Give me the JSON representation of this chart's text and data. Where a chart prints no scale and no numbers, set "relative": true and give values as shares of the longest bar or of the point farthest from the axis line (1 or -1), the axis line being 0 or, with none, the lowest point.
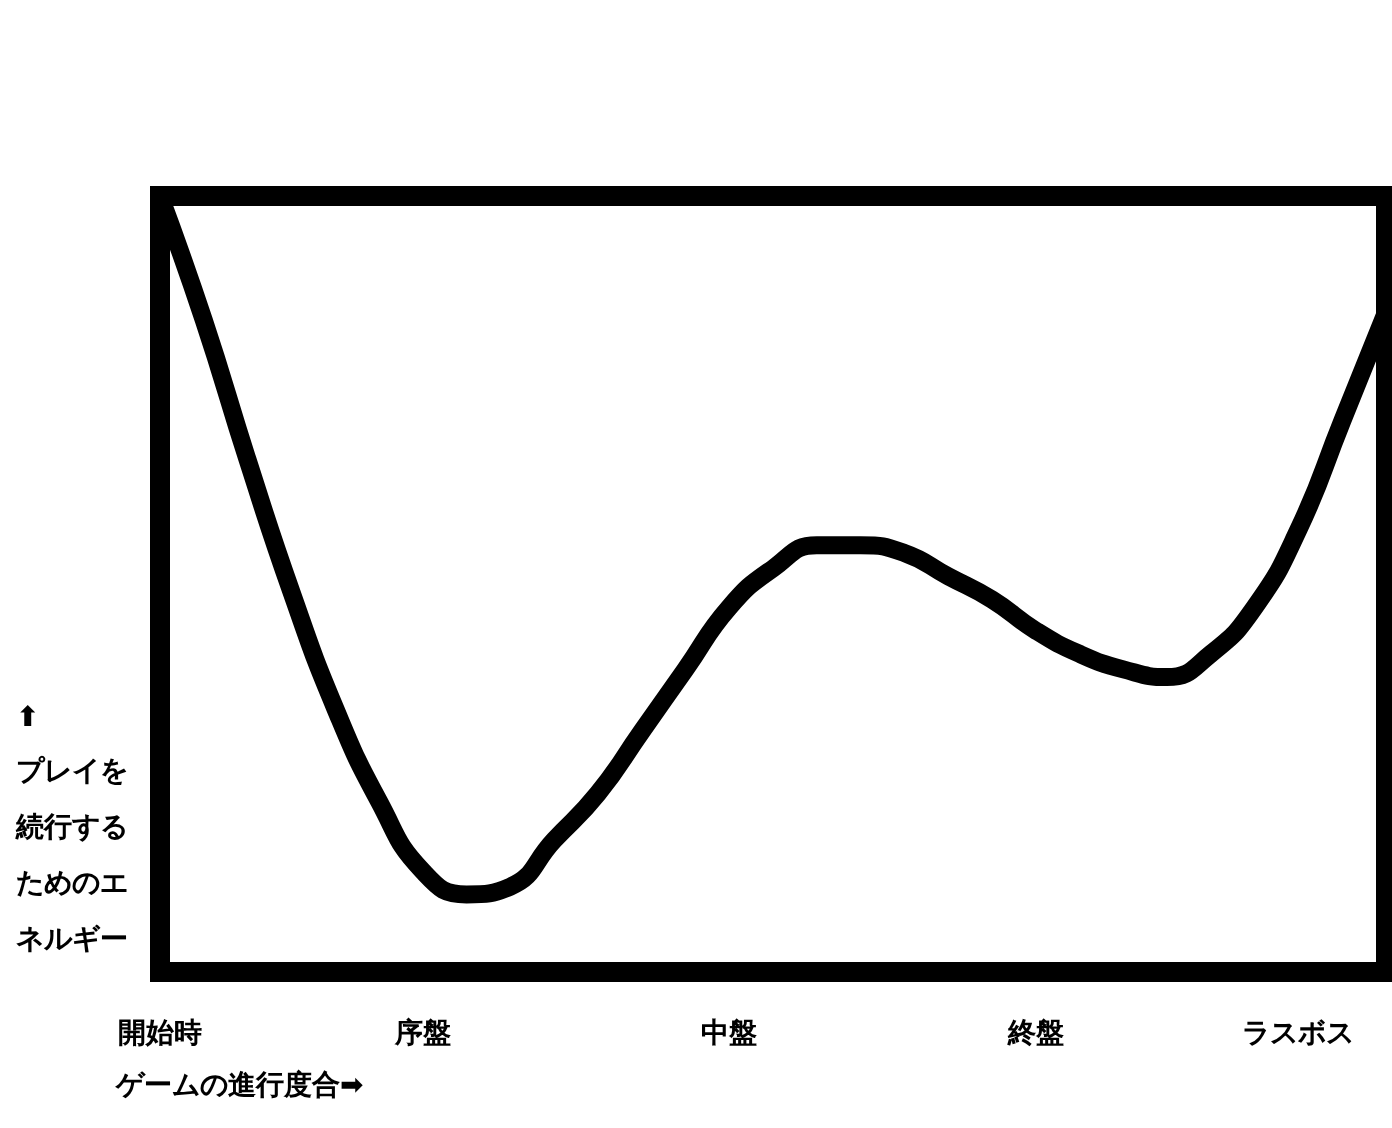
{
  "chart_data": {
    "type": "line",
    "relative": true,
    "xlabel": "ゲームの進行度合➡",
    "ylabel": "⬆プレイを続行するためのエネルギー",
    "categories": [
      "開始時",
      null,
      null,
      null,
      null,
      null,
      "序盤",
      null,
      null,
      null,
      null,
      null,
      null,
      "中盤",
      null,
      null,
      null,
      null,
      null,
      null,
      "終盤",
      null,
      null,
      null,
      null,
      null,
      "ラスボス",
      null,
      null
    ],
    "series": [
      {
        "color": "#000000",
        "values": [
          1.0,
          0.84,
          0.66,
          0.49,
          0.34,
          0.22,
          0.13,
          0.1,
          0.11,
          0.17,
          0.23,
          0.31,
          0.39,
          0.47,
          0.52,
          0.55,
          0.55,
          0.54,
          0.51,
          0.48,
          0.44,
          0.41,
          0.39,
          0.38,
          0.41,
          0.47,
          0.57,
          0.71,
          0.85
        ]
      }
    ],
    "grid": false,
    "line_style": "solid"
  }
}
